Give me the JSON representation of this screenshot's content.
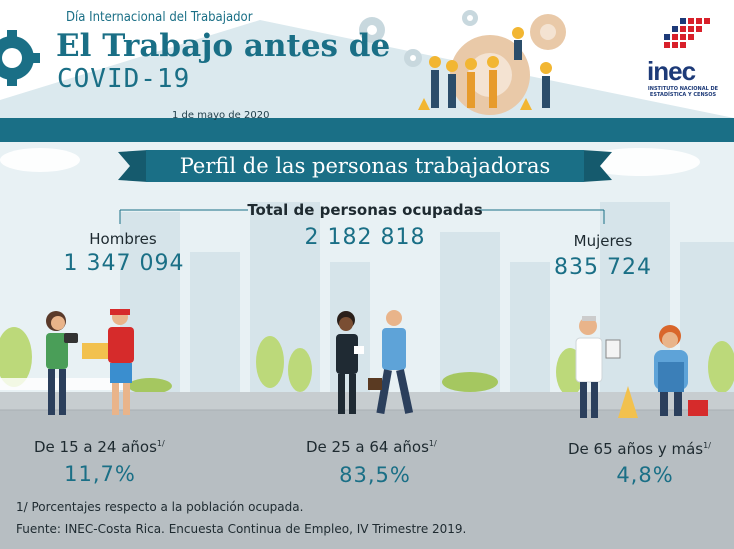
{
  "header": {
    "supertitle": "Día Internacional del Trabajador",
    "title": "El Trabajo antes de",
    "subtitle": "COVID-19",
    "date": "1 de mayo de 2020"
  },
  "logo": {
    "name": "inec",
    "subtitle": "INSTITUTO NACIONAL DE ESTADÍSTICA Y CENSOS"
  },
  "banner": "Perfil de las personas trabajadoras",
  "total": {
    "label": "Total de personas ocupadas",
    "value": "2 182 818"
  },
  "hombres": {
    "label": "Hombres",
    "value": "1 347 094"
  },
  "mujeres": {
    "label": "Mujeres",
    "value": "835 724"
  },
  "age_groups": [
    {
      "label": "De 15 a 24 años",
      "note": "1/",
      "percent": "11,7%"
    },
    {
      "label": "De 25 a 64 años",
      "note": "1/",
      "percent": "83,5%"
    },
    {
      "label": "De 65 años y más",
      "note": "1/",
      "percent": "4,8%"
    }
  ],
  "footer": {
    "note": "1/ Porcentajes respecto a la población ocupada.",
    "source": "Fuente: INEC-Costa Rica. Encuesta Continua de Empleo, IV Trimestre 2019."
  },
  "colors": {
    "primary": "#1a6f86",
    "logo_blue": "#1d3a78",
    "logo_red": "#d8202a"
  }
}
